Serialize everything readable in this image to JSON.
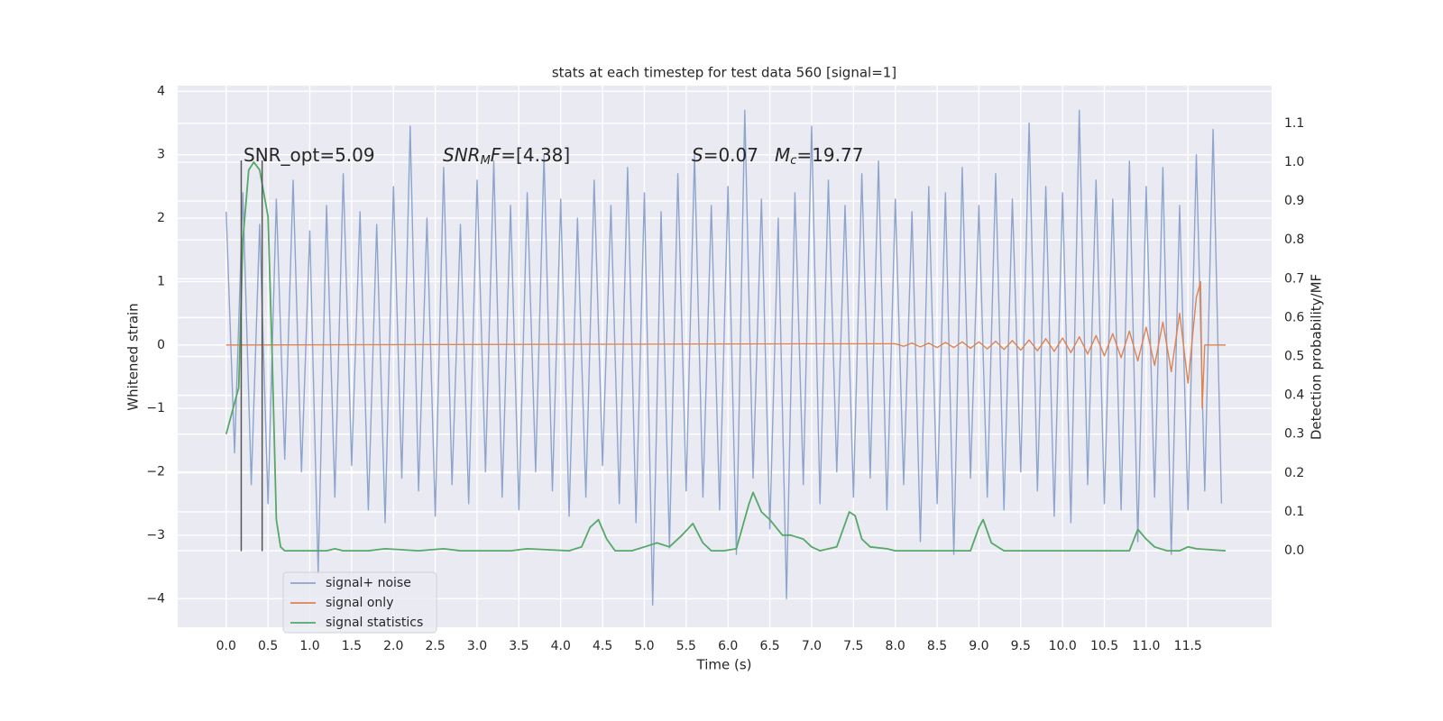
{
  "chart_data": {
    "type": "line",
    "title": "stats at each timestep for test data 560 [signal=1]",
    "x_label": "Time (s)",
    "y_label": "Whitened strain",
    "y2_label": "Detection probability/MF",
    "xlim": [
      -0.58,
      12.5
    ],
    "ylim": [
      -4.45,
      4.09
    ],
    "y2lim": [
      -0.197,
      1.197
    ],
    "xticks": [
      {
        "value": 0,
        "label": "0.0"
      },
      0.5,
      {
        "value": 1,
        "label": "1.0"
      },
      1.5,
      {
        "value": 2,
        "label": "2.0"
      },
      2.5,
      {
        "value": 3,
        "label": "3.0"
      },
      3.5,
      {
        "value": 4,
        "label": "4.0"
      },
      4.5,
      {
        "value": 5,
        "label": "5.0"
      },
      5.5,
      {
        "value": 6,
        "label": "6.0"
      },
      6.5,
      {
        "value": 7,
        "label": "7.0"
      },
      7.5,
      {
        "value": 8,
        "label": "8.0"
      },
      8.5,
      {
        "value": 9,
        "label": "9.0"
      },
      9.5,
      {
        "value": 10,
        "label": "10.0"
      },
      10.5,
      {
        "value": 11,
        "label": "11.0"
      },
      11.5
    ],
    "yticks": [
      {
        "value": -4,
        "label": "−4"
      },
      {
        "value": -3,
        "label": "−3"
      },
      {
        "value": -2,
        "label": "−2"
      },
      {
        "value": -1,
        "label": "−1"
      },
      0,
      1,
      2,
      3,
      4
    ],
    "y2ticks": [
      {
        "value": 0,
        "label": "0.0"
      },
      0.1,
      0.2,
      0.3,
      0.4,
      0.5,
      0.6,
      0.7,
      0.8,
      0.9,
      {
        "value": 1,
        "label": "1.0"
      },
      1.1
    ],
    "grid": true,
    "legend": "lower left",
    "vlines": [
      0.18,
      0.43
    ],
    "vline_ymin": -3.25,
    "vline_ymax": 2.91,
    "vline_color": "#555555",
    "annotations": [
      {
        "parts": [
          {
            "text": "SNR_opt=5.09"
          }
        ]
      },
      {
        "parts": [
          {
            "text": "SNR",
            "style": "italic"
          },
          {
            "text": "M",
            "style": "sub"
          },
          {
            "text": "F",
            "style": "italic"
          },
          {
            "text": "=[4.38]"
          }
        ]
      },
      {
        "parts": [
          {
            "text": "S",
            "style": "italic"
          },
          {
            "text": "=0.07"
          }
        ]
      },
      {
        "parts": [
          {
            "text": "M",
            "style": "italic"
          },
          {
            "text": "c",
            "style": "sub"
          },
          {
            "text": "=19.77"
          }
        ]
      }
    ],
    "series": [
      {
        "name": "signal+ noise",
        "color": "#8fa4cc",
        "x": [
          0.0,
          0.1,
          0.2,
          0.3,
          0.4,
          0.5,
          0.6,
          0.7,
          0.8,
          0.9,
          1.0,
          1.1,
          1.2,
          1.3,
          1.4,
          1.5,
          1.6,
          1.7,
          1.8,
          1.9,
          2.0,
          2.1,
          2.2,
          2.3,
          2.4,
          2.5,
          2.6,
          2.7,
          2.8,
          2.9,
          3.0,
          3.1,
          3.2,
          3.3,
          3.4,
          3.5,
          3.6,
          3.7,
          3.8,
          3.9,
          4.0,
          4.1,
          4.2,
          4.3,
          4.4,
          4.5,
          4.6,
          4.7,
          4.8,
          4.9,
          5.0,
          5.1,
          5.2,
          5.3,
          5.4,
          5.5,
          5.6,
          5.7,
          5.8,
          5.9,
          6.0,
          6.1,
          6.2,
          6.3,
          6.4,
          6.5,
          6.6,
          6.7,
          6.8,
          6.9,
          7.0,
          7.1,
          7.2,
          7.3,
          7.4,
          7.5,
          7.6,
          7.7,
          7.8,
          7.9,
          8.0,
          8.1,
          8.2,
          8.3,
          8.4,
          8.5,
          8.6,
          8.7,
          8.8,
          8.9,
          9.0,
          9.1,
          9.2,
          9.3,
          9.4,
          9.5,
          9.6,
          9.7,
          9.8,
          9.9,
          10.0,
          10.1,
          10.2,
          10.3,
          10.4,
          10.5,
          10.6,
          10.7,
          10.8,
          10.9,
          11.0,
          11.1,
          11.2,
          11.3,
          11.4,
          11.5,
          11.6,
          11.7,
          11.8,
          11.9
        ],
        "values": [
          2.1,
          -1.7,
          2.4,
          -2.2,
          1.9,
          -2.5,
          2.3,
          -1.8,
          2.6,
          -2.0,
          1.8,
          -3.6,
          2.2,
          -2.4,
          2.7,
          -1.9,
          2.1,
          -2.6,
          1.9,
          -2.8,
          2.5,
          -2.1,
          3.45,
          -2.3,
          2.0,
          -2.7,
          2.8,
          -2.2,
          1.9,
          -2.5,
          2.6,
          -2.0,
          2.9,
          -2.4,
          2.2,
          -2.6,
          2.4,
          -2.0,
          3.0,
          -2.3,
          2.3,
          -2.7,
          2.0,
          -2.4,
          2.6,
          -1.9,
          2.2,
          -2.5,
          2.8,
          -2.8,
          2.4,
          -4.1,
          2.1,
          -3.2,
          2.7,
          -2.3,
          3.0,
          -2.4,
          2.2,
          -2.6,
          2.5,
          -3.3,
          3.7,
          -2.1,
          2.3,
          -2.9,
          2.0,
          -4.0,
          2.4,
          -2.2,
          3.45,
          -2.5,
          2.6,
          -2.0,
          2.2,
          -2.4,
          2.7,
          -2.1,
          2.9,
          -2.6,
          2.3,
          -2.2,
          2.1,
          -3.1,
          2.5,
          -2.5,
          2.4,
          -3.3,
          2.8,
          -2.1,
          2.2,
          -2.4,
          2.7,
          -2.6,
          2.3,
          -2.0,
          3.5,
          -2.3,
          2.5,
          -2.7,
          2.4,
          -2.8,
          3.7,
          -2.2,
          2.6,
          -2.5,
          2.3,
          -2.6,
          2.9,
          -3.1,
          2.5,
          -2.4,
          2.8,
          -3.3,
          2.2,
          -2.6,
          3.0,
          -2.3,
          3.4,
          -2.5
        ]
      },
      {
        "name": "signal only",
        "color": "#dd8452",
        "x": [
          0.0,
          8.0,
          8.1,
          8.2,
          8.3,
          8.4,
          8.5,
          8.6,
          8.7,
          8.8,
          8.9,
          9.0,
          9.1,
          9.2,
          9.3,
          9.4,
          9.5,
          9.6,
          9.7,
          9.8,
          9.9,
          10.0,
          10.1,
          10.2,
          10.3,
          10.4,
          10.5,
          10.6,
          10.7,
          10.8,
          10.9,
          11.0,
          11.1,
          11.2,
          11.3,
          11.4,
          11.5,
          11.6,
          11.65,
          11.67,
          11.7,
          11.95
        ],
        "values": [
          0,
          0.02,
          -0.02,
          0.03,
          -0.03,
          0.03,
          -0.04,
          0.04,
          -0.04,
          0.05,
          -0.05,
          0.05,
          -0.06,
          0.06,
          -0.07,
          0.07,
          -0.08,
          0.08,
          -0.09,
          0.1,
          -0.1,
          0.11,
          -0.12,
          0.13,
          -0.14,
          0.15,
          -0.17,
          0.18,
          -0.2,
          0.22,
          -0.25,
          0.28,
          -0.32,
          0.36,
          -0.42,
          0.5,
          -0.6,
          0.75,
          1.0,
          -1.0,
          0,
          0
        ]
      },
      {
        "name": "signal statistics",
        "color": "#55a868",
        "axis": "y2",
        "x": [
          0.0,
          0.15,
          0.2,
          0.27,
          0.33,
          0.4,
          0.5,
          0.55,
          0.6,
          0.65,
          0.7,
          1.2,
          1.3,
          1.4,
          1.7,
          1.9,
          2.3,
          2.6,
          2.8,
          3.4,
          3.6,
          4.1,
          4.25,
          4.35,
          4.45,
          4.55,
          4.65,
          4.85,
          5.0,
          5.15,
          5.3,
          5.45,
          5.58,
          5.7,
          5.8,
          5.95,
          6.1,
          6.25,
          6.3,
          6.4,
          6.5,
          6.65,
          6.75,
          6.9,
          7.0,
          7.1,
          7.3,
          7.45,
          7.52,
          7.6,
          7.7,
          7.9,
          8.0,
          8.9,
          9.0,
          9.05,
          9.15,
          9.3,
          10.8,
          10.9,
          11.0,
          11.1,
          11.25,
          11.4,
          11.5,
          11.6,
          11.95
        ],
        "values": [
          0.3,
          0.42,
          0.8,
          0.98,
          1.0,
          0.98,
          0.86,
          0.5,
          0.08,
          0.01,
          0,
          0,
          0.005,
          0,
          0,
          0.005,
          0,
          0.005,
          0,
          0,
          0.005,
          0,
          0.01,
          0.06,
          0.08,
          0.03,
          0,
          0,
          0.01,
          0.02,
          0.01,
          0.04,
          0.07,
          0.02,
          0,
          0,
          0.005,
          0.12,
          0.15,
          0.1,
          0.08,
          0.04,
          0.04,
          0.03,
          0.01,
          0,
          0.01,
          0.1,
          0.09,
          0.03,
          0.01,
          0.005,
          0,
          0,
          0.06,
          0.08,
          0.02,
          0,
          0,
          0.055,
          0.03,
          0.01,
          0,
          0,
          0.01,
          0.005,
          0
        ]
      }
    ]
  }
}
